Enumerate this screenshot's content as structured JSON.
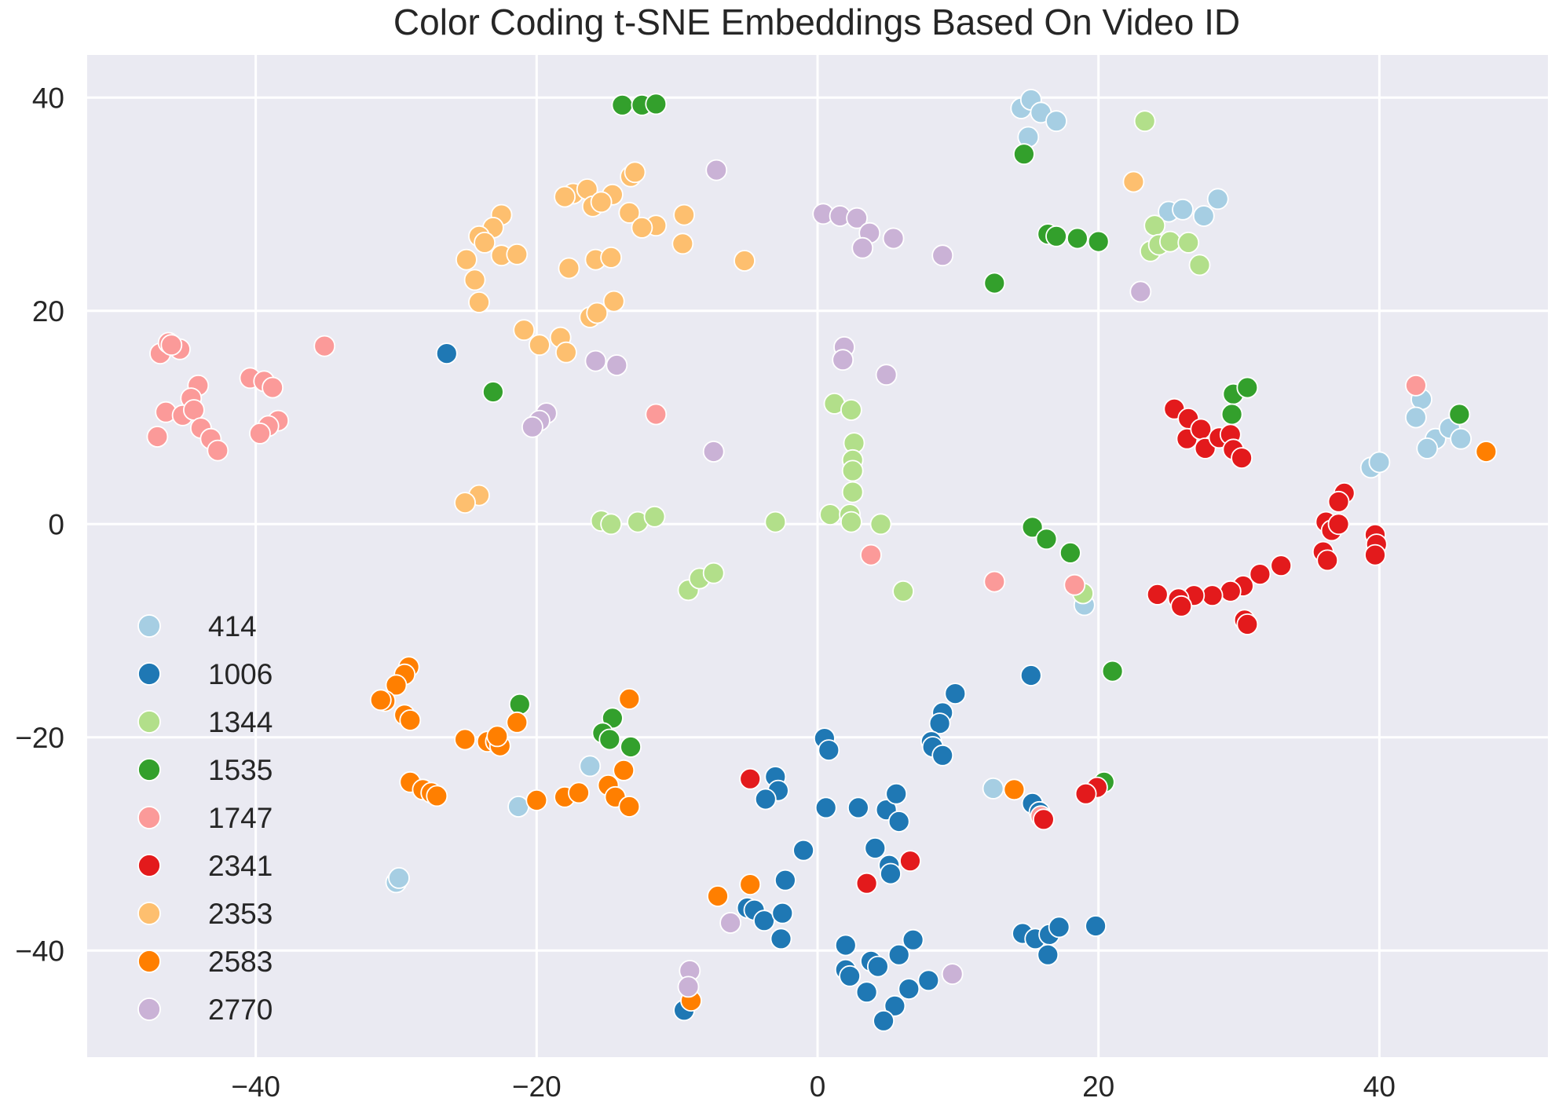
{
  "chart_data": {
    "type": "scatter",
    "title": "Color Coding t-SNE Embeddings Based On Video ID",
    "xlabel": "",
    "ylabel": "",
    "xlim": [
      -52,
      52
    ],
    "ylim": [
      -50,
      44
    ],
    "xticks": [
      -40,
      -20,
      0,
      20,
      40
    ],
    "yticks": [
      40,
      20,
      0,
      -20,
      -40
    ],
    "xtick_labels": [
      "−40",
      "−20",
      "0",
      "20",
      "40"
    ],
    "ytick_labels": [
      "40",
      "20",
      "0",
      "−20",
      "−40"
    ],
    "grid": true,
    "legend_position": "lower-left",
    "series": [
      {
        "name": "414",
        "color": "#a6cee3",
        "points": [
          [
            14.5,
            39
          ],
          [
            15.2,
            39.8
          ],
          [
            15.9,
            38.6
          ],
          [
            17,
            37.8
          ],
          [
            15,
            36.3
          ],
          [
            25,
            29.3
          ],
          [
            26,
            29.5
          ],
          [
            27.5,
            28.9
          ],
          [
            28.5,
            30.5
          ],
          [
            43,
            11.7
          ],
          [
            42.6,
            10
          ],
          [
            44,
            8
          ],
          [
            45,
            9
          ],
          [
            45.8,
            8
          ],
          [
            43.4,
            7.1
          ],
          [
            39.4,
            5.3
          ],
          [
            40,
            5.8
          ],
          [
            19,
            -7.6
          ],
          [
            12.5,
            -24.8
          ],
          [
            -16.2,
            -22.7
          ],
          [
            -21.3,
            -26.5
          ],
          [
            -30,
            -33.6
          ],
          [
            -29.8,
            -33.2
          ]
        ]
      },
      {
        "name": "1006",
        "color": "#1f78b4",
        "points": [
          [
            -26.4,
            16
          ],
          [
            15.2,
            -14.2
          ],
          [
            9.8,
            -15.9
          ],
          [
            8.9,
            -17.7
          ],
          [
            8.7,
            -18.7
          ],
          [
            8.1,
            -20.4
          ],
          [
            8.2,
            -20.9
          ],
          [
            8.9,
            -21.7
          ],
          [
            0.5,
            -20.1
          ],
          [
            0.8,
            -21.2
          ],
          [
            -3,
            -23.7
          ],
          [
            -2.8,
            -25
          ],
          [
            -3.7,
            -25.8
          ],
          [
            0.6,
            -26.6
          ],
          [
            2.9,
            -26.6
          ],
          [
            4.9,
            -26.8
          ],
          [
            5.6,
            -25.3
          ],
          [
            5.8,
            -27.9
          ],
          [
            15.3,
            -26.2
          ],
          [
            15.8,
            -27
          ],
          [
            4.1,
            -30.4
          ],
          [
            5.1,
            -32
          ],
          [
            5.2,
            -32.8
          ],
          [
            -1,
            -30.6
          ],
          [
            -2.3,
            -33.4
          ],
          [
            -5,
            -36
          ],
          [
            -4.5,
            -36.2
          ],
          [
            -3.8,
            -37.2
          ],
          [
            -2.5,
            -36.5
          ],
          [
            -2.6,
            -38.9
          ],
          [
            2,
            -39.5
          ],
          [
            2,
            -41.8
          ],
          [
            2.3,
            -42.4
          ],
          [
            3.5,
            -43.9
          ],
          [
            3.8,
            -41
          ],
          [
            4.3,
            -41.5
          ],
          [
            6.8,
            -39
          ],
          [
            5.8,
            -40.4
          ],
          [
            6.5,
            -43.6
          ],
          [
            7.9,
            -42.8
          ],
          [
            5.5,
            -45.2
          ],
          [
            4.7,
            -46.6
          ],
          [
            14.6,
            -38.4
          ],
          [
            15.5,
            -38.9
          ],
          [
            16.5,
            -38.5
          ],
          [
            17.2,
            -37.8
          ],
          [
            16.4,
            -40.4
          ],
          [
            19.8,
            -37.7
          ],
          [
            -9.5,
            -45.6
          ]
        ]
      },
      {
        "name": "1344",
        "color": "#b2df8a",
        "points": [
          [
            23.3,
            37.8
          ],
          [
            24,
            28
          ],
          [
            23.7,
            25.6
          ],
          [
            24.3,
            26.2
          ],
          [
            25.1,
            26.5
          ],
          [
            26.4,
            26.4
          ],
          [
            27.2,
            24.3
          ],
          [
            1.2,
            11.3
          ],
          [
            2.4,
            10.7
          ],
          [
            2.6,
            7.6
          ],
          [
            2.5,
            6
          ],
          [
            2.5,
            5
          ],
          [
            2.5,
            3
          ],
          [
            0.9,
            0.9
          ],
          [
            2.3,
            0.9
          ],
          [
            2.4,
            0.2
          ],
          [
            4.5,
            0
          ],
          [
            -15.4,
            0.3
          ],
          [
            -14.7,
            0
          ],
          [
            -12.8,
            0.2
          ],
          [
            -11.6,
            0.7
          ],
          [
            -3,
            0.2
          ],
          [
            -9.2,
            -6.2
          ],
          [
            -8.4,
            -5.1
          ],
          [
            -7.4,
            -4.6
          ],
          [
            6.1,
            -6.3
          ],
          [
            18.9,
            -6.5
          ]
        ]
      },
      {
        "name": "1535",
        "color": "#33a02c",
        "points": [
          [
            -13.9,
            39.3
          ],
          [
            -12.5,
            39.3
          ],
          [
            -11.5,
            39.4
          ],
          [
            14.7,
            34.7
          ],
          [
            16.4,
            27.2
          ],
          [
            17,
            27
          ],
          [
            18.5,
            26.8
          ],
          [
            20,
            26.5
          ],
          [
            12.6,
            22.6
          ],
          [
            -23.1,
            12.4
          ],
          [
            29.6,
            12.2
          ],
          [
            30.6,
            12.8
          ],
          [
            29.5,
            10.3
          ],
          [
            45.7,
            10.3
          ],
          [
            15.3,
            -0.3
          ],
          [
            16.3,
            -1.4
          ],
          [
            18,
            -2.7
          ],
          [
            21,
            -13.8
          ],
          [
            -21.2,
            -16.9
          ],
          [
            -14.6,
            -18.2
          ],
          [
            -15.3,
            -19.6
          ],
          [
            -14.8,
            -20.2
          ],
          [
            -13.3,
            -20.9
          ],
          [
            20.4,
            -24.2
          ]
        ]
      },
      {
        "name": "1747",
        "color": "#fb9a99",
        "points": [
          [
            -46.8,
            16
          ],
          [
            -46.2,
            17
          ],
          [
            -45.4,
            16.4
          ],
          [
            -46,
            16.8
          ],
          [
            -35.1,
            16.7
          ],
          [
            -40.4,
            13.7
          ],
          [
            -39.4,
            13.4
          ],
          [
            -38.8,
            12.8
          ],
          [
            -44.1,
            13
          ],
          [
            -44.6,
            11.8
          ],
          [
            -46.4,
            10.5
          ],
          [
            -45.2,
            10.2
          ],
          [
            -44.4,
            10.7
          ],
          [
            -43.9,
            9
          ],
          [
            -43.2,
            8
          ],
          [
            -38.4,
            9.7
          ],
          [
            -39.1,
            9.2
          ],
          [
            -39.7,
            8.5
          ],
          [
            -47,
            8.2
          ],
          [
            -42.7,
            6.9
          ],
          [
            -11.5,
            10.3
          ],
          [
            42.6,
            13
          ],
          [
            3.8,
            -2.9
          ],
          [
            12.6,
            -5.4
          ],
          [
            18.3,
            -5.7
          ],
          [
            15.9,
            -27.4
          ]
        ]
      },
      {
        "name": "2341",
        "color": "#e31a1c",
        "points": [
          [
            25.4,
            10.8
          ],
          [
            26.4,
            9.9
          ],
          [
            26.3,
            8
          ],
          [
            27.3,
            8.9
          ],
          [
            27.6,
            7.1
          ],
          [
            28.6,
            8.1
          ],
          [
            29.4,
            8.4
          ],
          [
            29.6,
            7
          ],
          [
            30.2,
            6.2
          ],
          [
            37.5,
            2.9
          ],
          [
            37.1,
            2.1
          ],
          [
            36.2,
            0.2
          ],
          [
            36.6,
            -0.6
          ],
          [
            37.1,
            0
          ],
          [
            39.7,
            -1
          ],
          [
            39.8,
            -1.9
          ],
          [
            39.7,
            -2.9
          ],
          [
            36,
            -2.6
          ],
          [
            36.3,
            -3.4
          ],
          [
            33,
            -3.9
          ],
          [
            31.5,
            -4.7
          ],
          [
            30.3,
            -5.8
          ],
          [
            29.4,
            -6.3
          ],
          [
            28.1,
            -6.7
          ],
          [
            26.8,
            -6.7
          ],
          [
            25.7,
            -7
          ],
          [
            25.9,
            -7.7
          ],
          [
            24.2,
            -6.6
          ],
          [
            30.4,
            -9
          ],
          [
            30.6,
            -9.4
          ],
          [
            19.9,
            -24.7
          ],
          [
            19.1,
            -25.3
          ],
          [
            -4.8,
            -23.9
          ],
          [
            6.6,
            -31.6
          ],
          [
            3.5,
            -33.7
          ],
          [
            16.1,
            -27.7
          ]
        ]
      },
      {
        "name": "2353",
        "color": "#fdbf6f",
        "points": [
          [
            -13.3,
            32.6
          ],
          [
            -13,
            33
          ],
          [
            -17.4,
            31
          ],
          [
            -18,
            30.7
          ],
          [
            -16.4,
            31.4
          ],
          [
            -14.6,
            30.9
          ],
          [
            -16,
            29.8
          ],
          [
            -15.4,
            30.2
          ],
          [
            -13.4,
            29.2
          ],
          [
            -11.5,
            28
          ],
          [
            -12.5,
            27.8
          ],
          [
            -9.5,
            29
          ],
          [
            -9.6,
            26.3
          ],
          [
            -22.5,
            29
          ],
          [
            -23.1,
            27.8
          ],
          [
            -24.1,
            27
          ],
          [
            -23.7,
            26.4
          ],
          [
            -22.5,
            25.2
          ],
          [
            -21.4,
            25.3
          ],
          [
            -25,
            24.8
          ],
          [
            -24.4,
            22.9
          ],
          [
            -24.1,
            20.8
          ],
          [
            -15.8,
            24.8
          ],
          [
            -14.7,
            25
          ],
          [
            -17.7,
            24
          ],
          [
            -5.2,
            24.7
          ],
          [
            -16.2,
            19.4
          ],
          [
            -15.7,
            19.8
          ],
          [
            -14.5,
            20.9
          ],
          [
            -20.9,
            18.2
          ],
          [
            -18.3,
            17.5
          ],
          [
            -19.8,
            16.8
          ],
          [
            -17.9,
            16.1
          ],
          [
            -24.1,
            2.7
          ],
          [
            -25.1,
            2
          ],
          [
            22.5,
            32.1
          ]
        ]
      },
      {
        "name": "2583",
        "color": "#ff7f00",
        "points": [
          [
            47.6,
            6.8
          ],
          [
            -29.1,
            -13.4
          ],
          [
            -29.4,
            -14.1
          ],
          [
            -30,
            -15.1
          ],
          [
            -30.8,
            -16.6
          ],
          [
            -31.1,
            -16.5
          ],
          [
            -29.4,
            -17.9
          ],
          [
            -29,
            -18.4
          ],
          [
            -21.4,
            -18.6
          ],
          [
            -25.1,
            -20.2
          ],
          [
            -23.5,
            -20.4
          ],
          [
            -22.9,
            -20.4
          ],
          [
            -22.6,
            -20.8
          ],
          [
            -22.8,
            -19.9
          ],
          [
            -13.4,
            -16.4
          ],
          [
            -13.8,
            -23.1
          ],
          [
            -14.9,
            -24.5
          ],
          [
            -14.4,
            -25.6
          ],
          [
            -13.4,
            -26.5
          ],
          [
            -29,
            -24.2
          ],
          [
            -28.1,
            -24.9
          ],
          [
            -27.5,
            -25.2
          ],
          [
            -27.1,
            -25.5
          ],
          [
            -20,
            -25.9
          ],
          [
            -18,
            -25.6
          ],
          [
            -17,
            -25.2
          ],
          [
            -7.1,
            -34.9
          ],
          [
            -4.8,
            -33.8
          ],
          [
            14,
            -24.9
          ],
          [
            -9,
            -44.7
          ]
        ]
      },
      {
        "name": "2770",
        "color": "#cab2d6",
        "points": [
          [
            -7.2,
            33.2
          ],
          [
            0.4,
            29.1
          ],
          [
            1.6,
            28.9
          ],
          [
            2.8,
            28.7
          ],
          [
            3.7,
            27.3
          ],
          [
            5.4,
            26.8
          ],
          [
            3.2,
            25.9
          ],
          [
            8.9,
            25.2
          ],
          [
            23,
            21.8
          ],
          [
            1.9,
            16.6
          ],
          [
            1.8,
            15.4
          ],
          [
            4.9,
            14
          ],
          [
            -15.8,
            15.3
          ],
          [
            -14.3,
            14.9
          ],
          [
            -19.3,
            10.4
          ],
          [
            -19.8,
            9.7
          ],
          [
            -20.3,
            9.1
          ],
          [
            -7.4,
            6.8
          ],
          [
            -6.2,
            -37.4
          ],
          [
            -9.1,
            -41.9
          ],
          [
            -9.2,
            -43.4
          ],
          [
            9.6,
            -42.2
          ]
        ]
      }
    ]
  }
}
